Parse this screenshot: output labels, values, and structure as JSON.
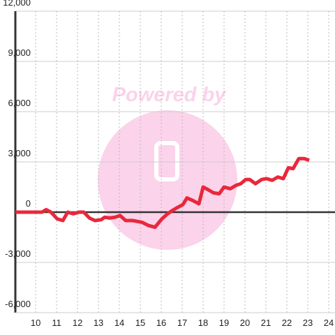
{
  "chart_data": {
    "type": "line",
    "watermark": "Powered by",
    "x": [
      9.03,
      10.3,
      10.5,
      10.73,
      11.03,
      11.3,
      11.53,
      11.8,
      12.07,
      12.3,
      12.57,
      12.83,
      13.13,
      13.3,
      13.53,
      13.8,
      14.03,
      14.3,
      14.63,
      15.07,
      15.4,
      15.7,
      16.03,
      16.3,
      16.53,
      16.73,
      17.03,
      17.23,
      17.5,
      17.8,
      18.0,
      18.23,
      18.5,
      18.77,
      19.0,
      19.3,
      19.57,
      19.8,
      20.03,
      20.23,
      20.5,
      20.8,
      21.03,
      21.3,
      21.57,
      21.83,
      22.07,
      22.3,
      22.57,
      22.83,
      23.07
    ],
    "series": [
      {
        "color": "#e8283c",
        "values": [
          0,
          0,
          150,
          0,
          -400,
          -500,
          0,
          -100,
          0,
          0,
          -350,
          -500,
          -450,
          -300,
          -350,
          -300,
          -200,
          -500,
          -500,
          -600,
          -800,
          -900,
          -400,
          -100,
          100,
          250,
          450,
          850,
          700,
          500,
          1500,
          1350,
          1150,
          1100,
          1500,
          1400,
          1600,
          1700,
          1950,
          1950,
          1700,
          1950,
          2000,
          1900,
          2100,
          2000,
          2650,
          2600,
          3200,
          3200,
          3100
        ]
      }
    ],
    "xlim": [
      9.03,
      24.3
    ],
    "xticks": [
      10,
      11,
      12,
      13,
      14,
      15,
      16,
      17,
      18,
      19,
      20,
      21,
      22,
      23,
      24
    ],
    "ylim": [
      -6000,
      12000
    ],
    "yticks": [
      {
        "value": -6000,
        "label": "-6,000"
      },
      {
        "value": -3000,
        "label": "-3,000"
      },
      0,
      {
        "value": 3000,
        "label": "3,000"
      },
      {
        "value": 6000,
        "label": "6,000"
      },
      {
        "value": 9000,
        "label": "9,000"
      },
      {
        "value": 12000,
        "label": "12,000"
      }
    ],
    "grid": true
  }
}
